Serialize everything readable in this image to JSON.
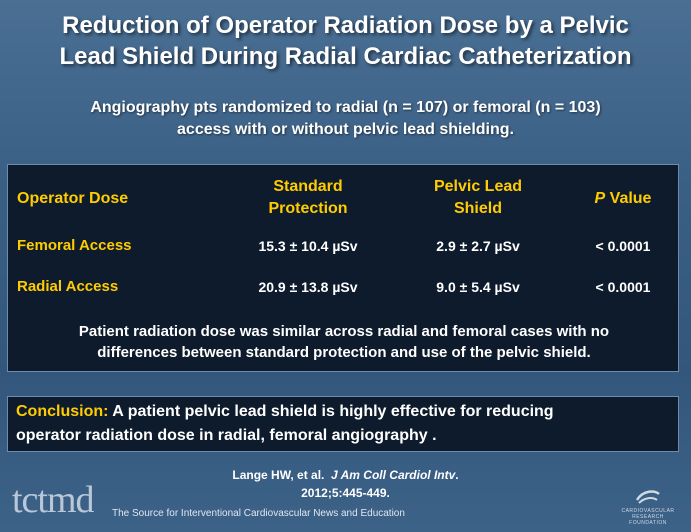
{
  "title": {
    "line1": "Reduction of Operator Radiation Dose by a Pelvic",
    "line2": "Lead Shield During Radial Cardiac Catheterization"
  },
  "subtitle": {
    "line1": "Angiography pts randomized to radial (n = 107) or femoral (n = 103)",
    "line2": "access with or without pelvic lead shielding."
  },
  "table": {
    "headers": {
      "operator_dose": "Operator Dose",
      "standard_line1": "Standard",
      "standard_line2": "Protection",
      "pelvic_line1": "Pelvic Lead",
      "pelvic_line2": "Shield",
      "p_italic": "P",
      "p_rest": " Value"
    },
    "rows": [
      {
        "label": "Femoral Access",
        "standard": "15.3 ± 10.4 µSv",
        "pelvic": "2.9 ± 2.7 µSv",
        "p": "< 0.0001"
      },
      {
        "label": "Radial Access",
        "standard": "20.9 ± 13.8 µSv",
        "pelvic": "9.0 ± 5.4 µSv",
        "p": "< 0.0001"
      }
    ],
    "note_line1": "Patient radiation dose was similar across radial and femoral cases with no",
    "note_line2": "differences between standard protection and use of the pelvic shield."
  },
  "conclusion": {
    "label": "Conclusion:",
    "text_line1": " A patient pelvic lead shield is highly effective for reducing",
    "text_line2": "operator radiation dose in radial, femoral angiography   ."
  },
  "citation": {
    "authors": "Lange HW, et al.",
    "journal": "J Am Coll Cardiol Intv",
    "journal_suffix": ".",
    "line2": "2012;5:445-449."
  },
  "footer": {
    "logo": "tctmd",
    "tagline": "The Source for Interventional Cardiovascular News and Education",
    "foundation_line1": "CARDIOVASCULAR RESEARCH",
    "foundation_line2": "FOUNDATION"
  },
  "colors": {
    "accent": "#ffcc00",
    "panel": "#0e1b2c",
    "background": "#3a5f85"
  }
}
